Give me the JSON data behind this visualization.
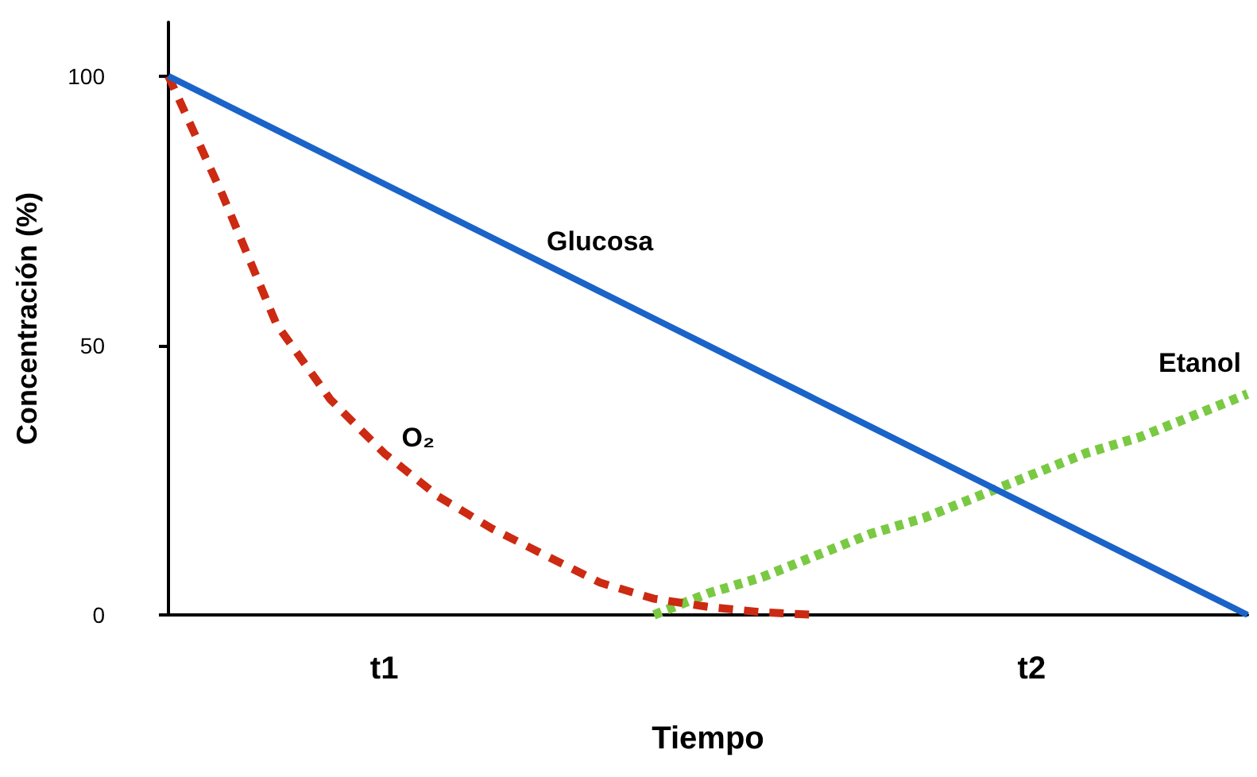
{
  "chart_data": {
    "type": "line",
    "xlabel": "Tiempo",
    "ylabel": "Concentración (%)",
    "categories": [
      null,
      null,
      null,
      null,
      "t1",
      null,
      null,
      null,
      null,
      null,
      null,
      null,
      null,
      null,
      null,
      null,
      "t2",
      null,
      null,
      null,
      null
    ],
    "ylim": [
      0,
      110
    ],
    "yticks": [
      0,
      50,
      100
    ],
    "grid": false,
    "legend": false,
    "marker": "none",
    "series": [
      {
        "name": "Glucosa",
        "color": "#1a63c9",
        "line_style": "solid",
        "values": [
          100,
          95,
          90,
          85,
          80,
          75,
          70,
          65,
          60,
          55,
          50,
          45,
          40,
          35,
          30,
          25,
          20,
          15,
          10,
          5,
          0
        ]
      },
      {
        "name": "O₂",
        "color": "#cc2a12",
        "line_style": "dashed",
        "values": [
          100,
          78,
          54,
          40,
          30,
          22,
          16,
          11,
          6,
          3,
          1.5,
          0.5,
          0,
          null,
          null,
          null,
          null,
          null,
          null,
          null,
          null
        ]
      },
      {
        "name": "Etanol",
        "color": "#7ac943",
        "line_style": "dotted",
        "values": [
          null,
          null,
          null,
          null,
          null,
          null,
          null,
          null,
          null,
          0,
          4,
          7,
          11,
          15,
          18,
          22,
          26,
          30,
          33,
          37,
          41
        ]
      }
    ]
  }
}
